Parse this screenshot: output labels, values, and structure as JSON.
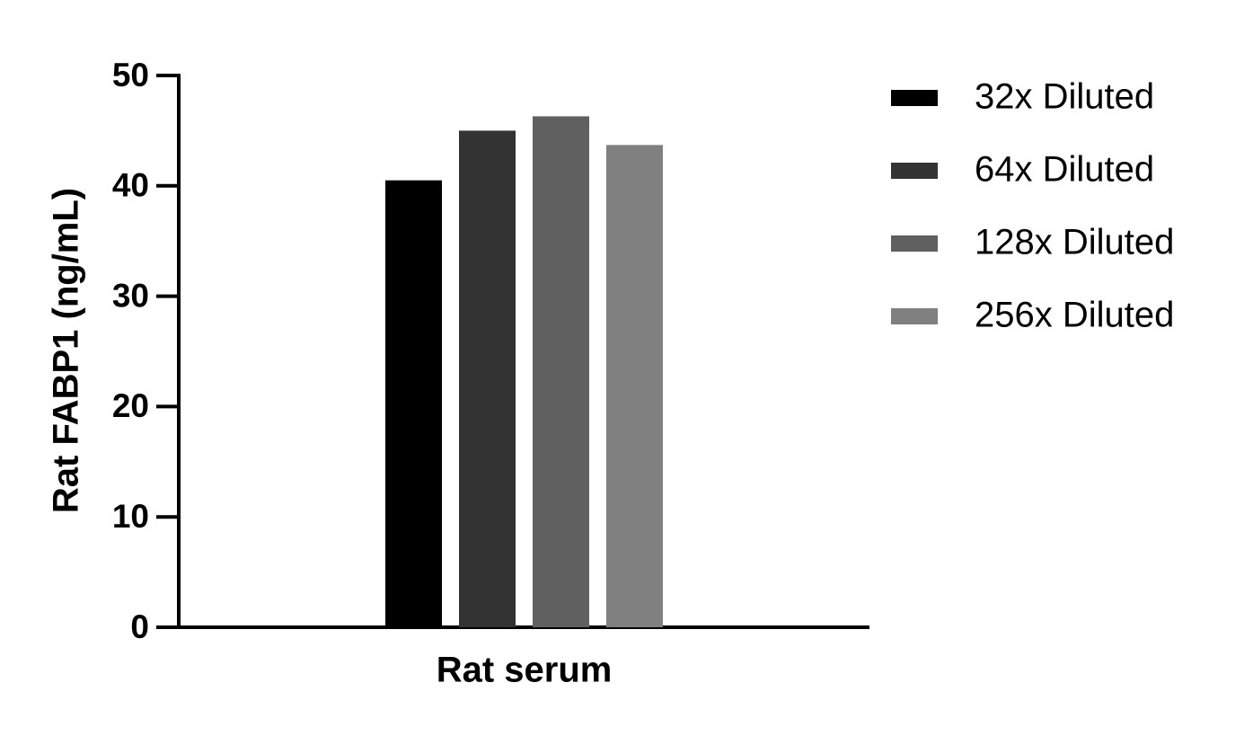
{
  "chart_data": {
    "type": "bar",
    "y_label": "Rat FABP1 (ng/mL)",
    "categories": [
      "Rat serum"
    ],
    "series": [
      {
        "name": "32x Diluted",
        "color": "#000000",
        "values": [
          40.5
        ]
      },
      {
        "name": "64x Diluted",
        "color": "#333333",
        "values": [
          45.0
        ]
      },
      {
        "name": "128x Diluted",
        "color": "#606060",
        "values": [
          46.3
        ]
      },
      {
        "name": "256x Diluted",
        "color": "#808080",
        "values": [
          43.7
        ]
      }
    ],
    "ylim": [
      0,
      50
    ],
    "yticks": [
      0,
      10,
      20,
      30,
      40,
      50
    ],
    "grid": false
  }
}
